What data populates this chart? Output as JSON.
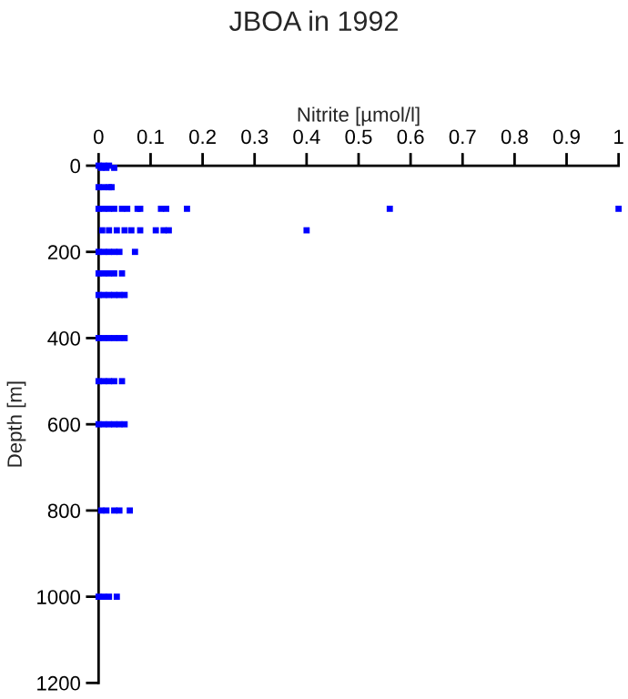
{
  "chart_data": {
    "type": "scatter",
    "title": "JBOA in 1992",
    "xlabel": "Nitrite [µmol/l]",
    "ylabel": "Depth [m]",
    "series": [
      {
        "color": "#0000ff",
        "x": [
          0,
          0.005,
          0.01,
          0.015,
          0.02,
          0.03,
          0,
          0.01,
          0.02,
          0.025,
          0,
          0.01,
          0.02,
          0.03,
          0.045,
          0.055,
          0.075,
          0.08,
          0.12,
          0.13,
          0.17,
          0.56,
          1.0,
          0.007,
          0.02,
          0.035,
          0.05,
          0.063,
          0.08,
          0.11,
          0.125,
          0.135,
          0.4,
          0,
          0.01,
          0.02,
          0.03,
          0.04,
          0.07,
          0,
          0.01,
          0.02,
          0.03,
          0.045,
          0,
          0.01,
          0.02,
          0.03,
          0.04,
          0.05,
          0,
          0.01,
          0.02,
          0.03,
          0.04,
          0.05,
          0,
          0.01,
          0.02,
          0.03,
          0.045,
          0,
          0.01,
          0.02,
          0.03,
          0.04,
          0.05,
          0.005,
          0.015,
          0.03,
          0.04,
          0.06,
          0,
          0.01,
          0.02,
          0.035
        ],
        "values": [
          0,
          5,
          0,
          5,
          0,
          5,
          50,
          50,
          50,
          50,
          100,
          100,
          100,
          100,
          100,
          100,
          100,
          100,
          100,
          100,
          100,
          100,
          100,
          150,
          150,
          150,
          150,
          150,
          150,
          150,
          150,
          150,
          150,
          200,
          200,
          200,
          200,
          200,
          200,
          250,
          250,
          250,
          250,
          250,
          300,
          300,
          300,
          300,
          300,
          300,
          400,
          400,
          400,
          400,
          400,
          400,
          500,
          500,
          500,
          500,
          500,
          600,
          600,
          600,
          600,
          600,
          600,
          800,
          800,
          800,
          800,
          800,
          1000,
          1000,
          1000,
          1000
        ]
      }
    ],
    "marker": "square",
    "xlim": [
      0,
      1
    ],
    "xticks": [
      0,
      0.1,
      0.2,
      0.3,
      0.4,
      0.5,
      0.6,
      0.7,
      0.8,
      0.9,
      1
    ],
    "ylim": [
      1200,
      0
    ],
    "yticks": [
      0,
      200,
      400,
      600,
      800,
      1000,
      1200
    ],
    "grid": false
  }
}
